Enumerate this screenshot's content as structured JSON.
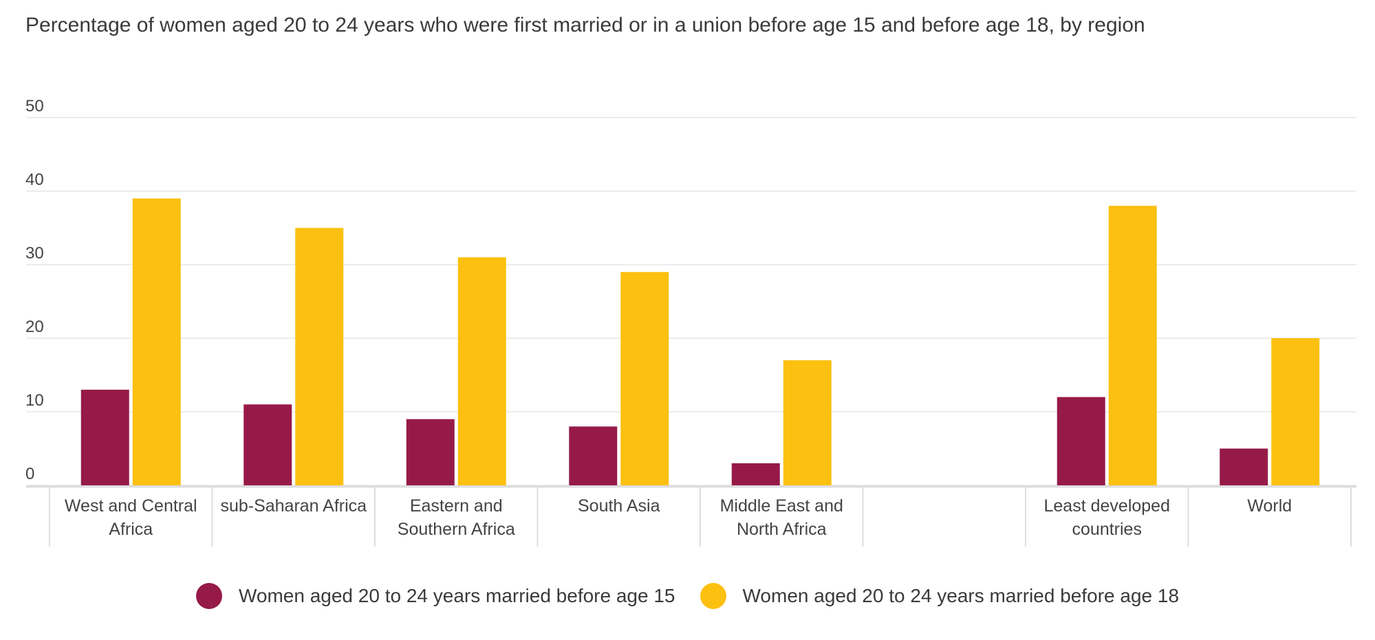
{
  "chart_data": {
    "type": "bar",
    "title": "Percentage of women aged 20 to 24 years who were first married or in a union before age 15 and before age 18, by region",
    "xlabel": "",
    "ylabel": "",
    "ylim": [
      0,
      50
    ],
    "yticks": [
      0,
      10,
      20,
      30,
      40,
      50
    ],
    "grid": true,
    "legend_position": "bottom",
    "categories": [
      [
        "West and Central",
        "Africa"
      ],
      [
        "sub-Saharan Africa"
      ],
      [
        "Eastern and",
        "Southern Africa"
      ],
      [
        "South Asia"
      ],
      [
        "Middle East and",
        "North Africa"
      ],
      [],
      [
        "Least developed",
        "countries"
      ],
      [
        "World"
      ]
    ],
    "series": [
      {
        "name": "Women aged 20 to 24 years married before age 15",
        "color": "#961a48",
        "values": [
          13,
          11,
          9,
          8,
          3,
          null,
          12,
          5
        ]
      },
      {
        "name": "Women aged 20 to 24 years married before age 18",
        "color": "#fcc010",
        "values": [
          39,
          35,
          31,
          29,
          17,
          null,
          38,
          20
        ]
      }
    ]
  }
}
